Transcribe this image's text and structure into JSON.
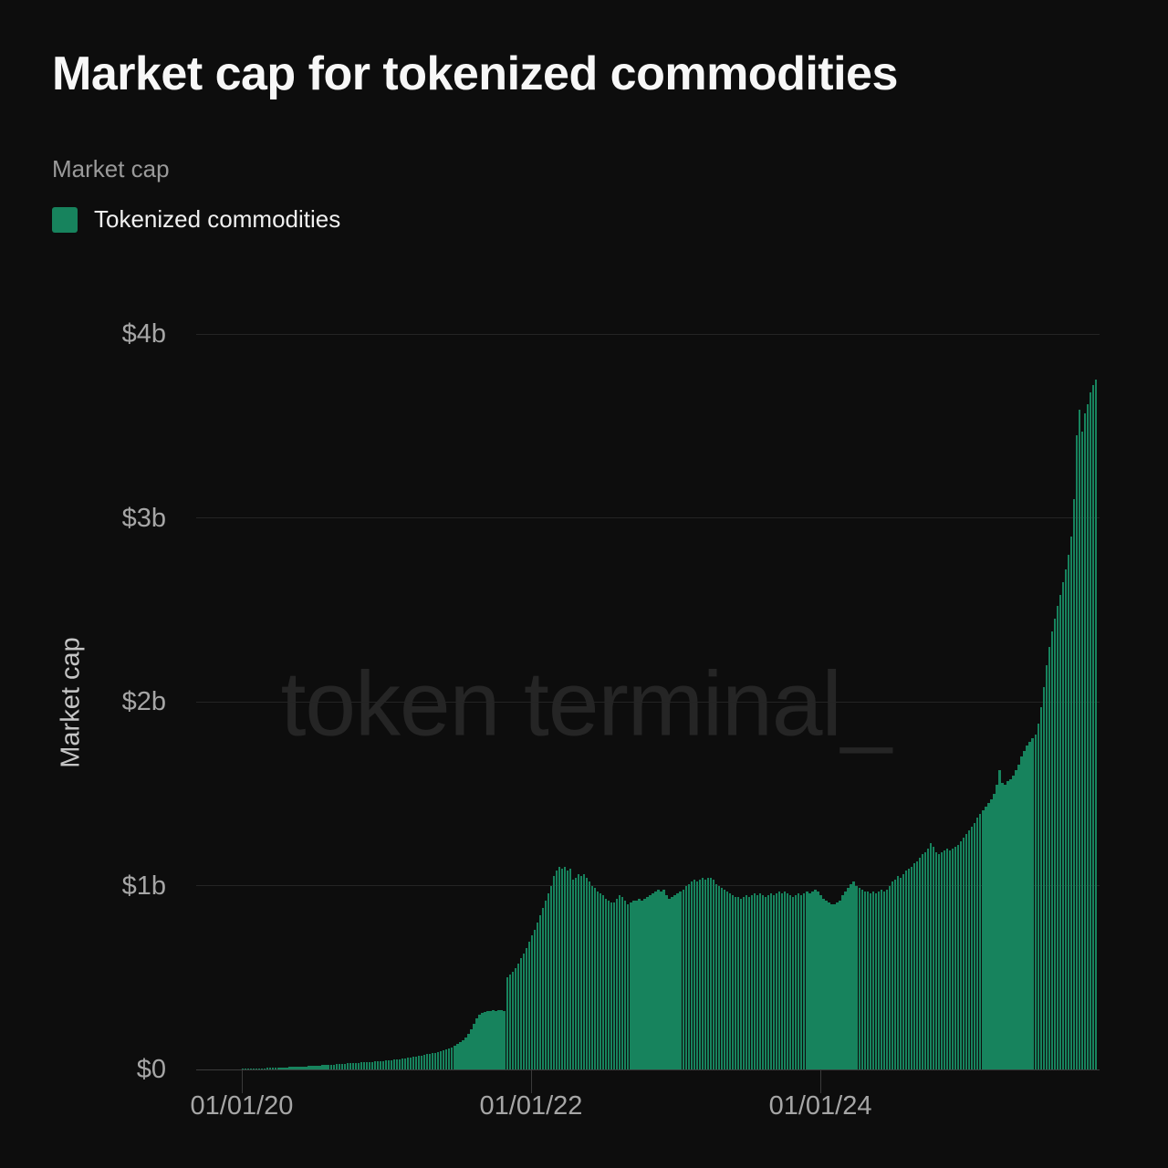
{
  "header": {
    "title": "Market cap for tokenized commodities",
    "subtitle": "Market cap"
  },
  "legend": {
    "items": [
      {
        "label": "Tokenized commodities",
        "color": "#17835D"
      }
    ]
  },
  "watermark": "token terminal_",
  "colors": {
    "background": "#0d0d0d",
    "bar_green": "#17835D",
    "gridline": "#242424",
    "baseline": "#3c3c3c",
    "axis_text": "#a6a6a6"
  },
  "chart_data": {
    "type": "bar",
    "title": "Market cap for tokenized commodities",
    "ylabel": "Market cap",
    "xlabel": "",
    "unit": "USD",
    "ylim_billions": [
      0,
      4
    ],
    "grid": "horizontal",
    "legend_position": "top-left",
    "y_ticks": [
      {
        "label": "$0",
        "value": 0
      },
      {
        "label": "$1b",
        "value": 1
      },
      {
        "label": "$2b",
        "value": 2
      },
      {
        "label": "$3b",
        "value": 3
      },
      {
        "label": "$4b",
        "value": 4
      }
    ],
    "x_ticks": [
      {
        "label": "01/01/20",
        "pos": 0.0
      },
      {
        "label": "01/01/22",
        "pos": 0.3372
      },
      {
        "label": "01/01/24",
        "pos": 0.6745
      }
    ],
    "series": [
      {
        "name": "Tokenized commodities",
        "color": "#17835D",
        "cadence": "weekly",
        "start_date": "2020-01-01",
        "end_date": "2025-12-01",
        "unit": "USD billions",
        "values": [
          0.004,
          0.004,
          0.005,
          0.005,
          0.005,
          0.006,
          0.006,
          0.007,
          0.007,
          0.008,
          0.009,
          0.01,
          0.01,
          0.011,
          0.011,
          0.012,
          0.012,
          0.013,
          0.013,
          0.014,
          0.015,
          0.015,
          0.016,
          0.017,
          0.018,
          0.019,
          0.02,
          0.021,
          0.022,
          0.023,
          0.024,
          0.025,
          0.026,
          0.027,
          0.028,
          0.029,
          0.031,
          0.032,
          0.033,
          0.034,
          0.035,
          0.036,
          0.037,
          0.038,
          0.039,
          0.04,
          0.041,
          0.042,
          0.043,
          0.044,
          0.045,
          0.047,
          0.048,
          0.05,
          0.052,
          0.053,
          0.055,
          0.057,
          0.059,
          0.061,
          0.063,
          0.065,
          0.068,
          0.07,
          0.073,
          0.076,
          0.079,
          0.082,
          0.085,
          0.088,
          0.09,
          0.095,
          0.1,
          0.105,
          0.11,
          0.115,
          0.12,
          0.13,
          0.14,
          0.15,
          0.16,
          0.175,
          0.195,
          0.22,
          0.25,
          0.28,
          0.3,
          0.31,
          0.315,
          0.32,
          0.318,
          0.322,
          0.32,
          0.323,
          0.321,
          0.32,
          0.5,
          0.515,
          0.53,
          0.55,
          0.575,
          0.605,
          0.63,
          0.66,
          0.695,
          0.73,
          0.76,
          0.8,
          0.84,
          0.88,
          0.92,
          0.96,
          1.0,
          1.05,
          1.08,
          1.1,
          1.09,
          1.1,
          1.08,
          1.09,
          1.03,
          1.04,
          1.06,
          1.05,
          1.06,
          1.04,
          1.02,
          1.0,
          0.99,
          0.97,
          0.96,
          0.95,
          0.93,
          0.92,
          0.91,
          0.91,
          0.93,
          0.95,
          0.94,
          0.92,
          0.9,
          0.91,
          0.92,
          0.92,
          0.93,
          0.92,
          0.93,
          0.94,
          0.95,
          0.96,
          0.97,
          0.98,
          0.97,
          0.98,
          0.95,
          0.93,
          0.94,
          0.95,
          0.96,
          0.97,
          0.98,
          1.0,
          1.01,
          1.02,
          1.03,
          1.02,
          1.03,
          1.04,
          1.03,
          1.04,
          1.04,
          1.03,
          1.01,
          1.0,
          0.99,
          0.98,
          0.97,
          0.96,
          0.95,
          0.94,
          0.94,
          0.93,
          0.94,
          0.95,
          0.94,
          0.95,
          0.96,
          0.95,
          0.96,
          0.95,
          0.94,
          0.95,
          0.96,
          0.95,
          0.96,
          0.97,
          0.96,
          0.97,
          0.96,
          0.95,
          0.94,
          0.95,
          0.96,
          0.95,
          0.96,
          0.97,
          0.96,
          0.97,
          0.98,
          0.97,
          0.95,
          0.93,
          0.92,
          0.91,
          0.9,
          0.9,
          0.91,
          0.92,
          0.95,
          0.97,
          0.99,
          1.01,
          1.02,
          1.0,
          0.99,
          0.98,
          0.97,
          0.97,
          0.96,
          0.97,
          0.96,
          0.97,
          0.98,
          0.97,
          0.98,
          1.0,
          1.02,
          1.03,
          1.05,
          1.04,
          1.06,
          1.08,
          1.09,
          1.1,
          1.12,
          1.13,
          1.15,
          1.17,
          1.18,
          1.2,
          1.23,
          1.21,
          1.18,
          1.17,
          1.18,
          1.19,
          1.2,
          1.19,
          1.2,
          1.21,
          1.22,
          1.24,
          1.26,
          1.28,
          1.3,
          1.32,
          1.34,
          1.37,
          1.39,
          1.41,
          1.43,
          1.45,
          1.47,
          1.5,
          1.55,
          1.63,
          1.56,
          1.55,
          1.57,
          1.58,
          1.6,
          1.63,
          1.66,
          1.7,
          1.73,
          1.76,
          1.78,
          1.8,
          1.82,
          1.88,
          1.97,
          2.08,
          2.2,
          2.3,
          2.38,
          2.45,
          2.52,
          2.58,
          2.65,
          2.72,
          2.8,
          2.9,
          3.1,
          3.45,
          3.59,
          3.47,
          3.57,
          3.62,
          3.68,
          3.72,
          3.75
        ]
      }
    ]
  }
}
